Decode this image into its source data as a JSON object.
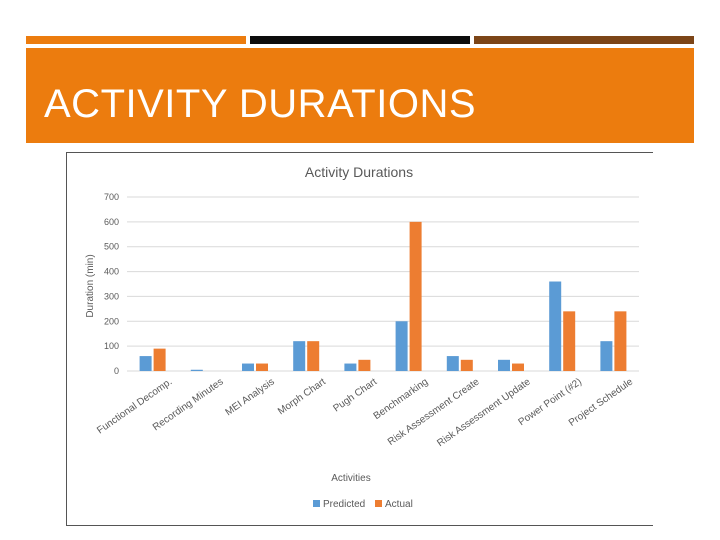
{
  "slide": {
    "title": "ACTIVITY DURATIONS",
    "colors": {
      "accent": "#ec7c0e",
      "dark": "#0d0d0d",
      "brown": "#7c4517"
    }
  },
  "chart_data": {
    "type": "bar",
    "title": "Activity Durations",
    "xlabel": "Activities",
    "ylabel": "Duration (min)",
    "ylim": [
      0,
      700
    ],
    "yticks": [
      0,
      100,
      200,
      300,
      400,
      500,
      600,
      700
    ],
    "grid": true,
    "legend_position": "bottom",
    "categories": [
      "Functional Decomp.",
      "Recording Minutes",
      "MEI Analysis",
      "Morph Chart",
      "Pugh Chart",
      "Benchmarking",
      "Risk Assessment Create",
      "Risk Assessment Update",
      "Power Point (#2)",
      "Project Schedule"
    ],
    "series": [
      {
        "name": "Predicted",
        "color": "#5b9bd5",
        "values": [
          60,
          5,
          30,
          120,
          30,
          200,
          60,
          45,
          360,
          120
        ]
      },
      {
        "name": "Actual",
        "color": "#ed7d31",
        "values": [
          90,
          0,
          30,
          120,
          45,
          600,
          45,
          30,
          240,
          240
        ]
      }
    ]
  }
}
